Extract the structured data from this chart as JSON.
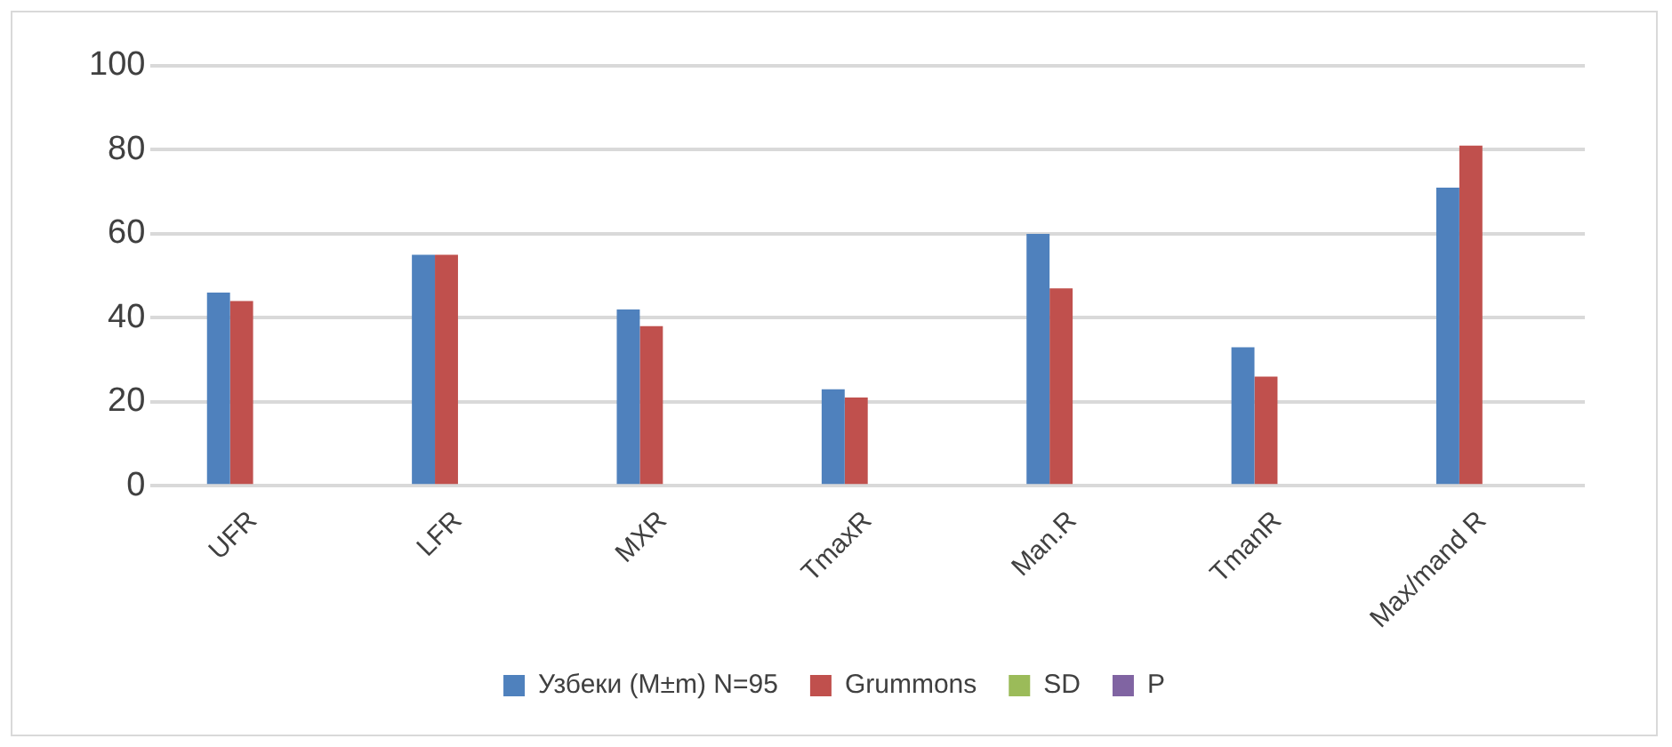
{
  "chart_data": {
    "type": "bar",
    "categories": [
      "UFR",
      "LFR",
      "MXR",
      "TmaxR",
      "Man.R",
      "TmanR",
      "Max/mand R"
    ],
    "series": [
      {
        "name": "Узбеки (M±m) N=95",
        "color": "#4f81bd",
        "values": [
          46,
          55,
          42,
          23,
          60,
          33,
          71
        ]
      },
      {
        "name": "Grummons",
        "color": "#c0504d",
        "values": [
          44,
          55,
          38,
          21,
          47,
          26,
          81
        ]
      },
      {
        "name": "SD",
        "color": "#9bbb59",
        "values": [
          null,
          null,
          null,
          null,
          null,
          null,
          null
        ]
      },
      {
        "name": "P",
        "color": "#8064a2",
        "values": [
          null,
          null,
          null,
          null,
          null,
          null,
          null
        ]
      }
    ],
    "ylim": [
      0,
      100
    ],
    "yticks": [
      0,
      20,
      40,
      60,
      80,
      100
    ],
    "grid": "y",
    "legend": "bottom"
  }
}
